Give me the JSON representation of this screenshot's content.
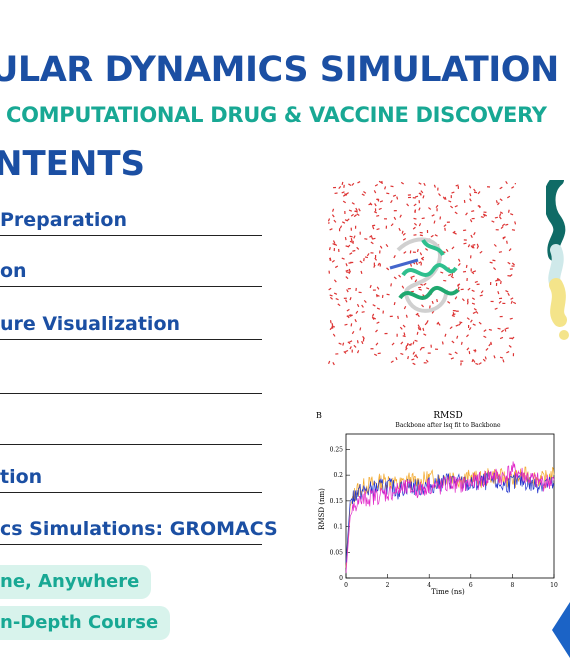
{
  "header": {
    "title": "ULAR DYNAMICS SIMULATION C",
    "subtitle": "COMPUTATIONAL DRUG & VACCINE DISCOVERY",
    "contents_heading": "NTENTS"
  },
  "toc": {
    "items": [
      "Preparation",
      "on",
      "ure Visualization",
      "",
      "",
      "tion",
      "cs Simulations: GROMACS"
    ]
  },
  "pills": {
    "first": "ne, Anywhere",
    "second": "n-Depth Course"
  },
  "rmsd_plot": {
    "panel_label": "B",
    "title": "RMSD",
    "subtitle": "Backbone after lsq fit to Backbone",
    "ylabel": "RMSD (nm)",
    "xlabel": "Time (ns)",
    "yticks": [
      "0",
      "0.05",
      "0.1",
      "0.15",
      "0.2",
      "0.25"
    ],
    "xticks": [
      "0",
      "2",
      "4",
      "6",
      "8",
      "10"
    ]
  },
  "chart_data": {
    "type": "line",
    "title": "RMSD",
    "subtitle": "Backbone after lsq fit to Backbone",
    "xlabel": "Time (ns)",
    "ylabel": "RMSD (nm)",
    "xlim": [
      0,
      10
    ],
    "ylim": [
      0,
      0.28
    ],
    "grid": false,
    "series": [
      {
        "color": "#f2a522",
        "x": [
          0,
          0.2,
          0.5,
          1,
          1.5,
          2,
          2.5,
          3,
          3.5,
          4,
          4.5,
          5,
          5.5,
          6,
          6.5,
          7,
          7.5,
          8,
          8.5,
          9,
          9.5,
          10
        ],
        "y": [
          0.02,
          0.14,
          0.17,
          0.18,
          0.185,
          0.19,
          0.18,
          0.19,
          0.185,
          0.195,
          0.19,
          0.2,
          0.19,
          0.195,
          0.19,
          0.2,
          0.195,
          0.19,
          0.2,
          0.195,
          0.19,
          0.2
        ]
      },
      {
        "color": "#2233cc",
        "x": [
          0,
          0.2,
          0.5,
          1,
          1.5,
          2,
          2.5,
          3,
          3.5,
          4,
          4.5,
          5,
          5.5,
          6,
          6.5,
          7,
          7.5,
          8,
          8.5,
          9,
          9.5,
          10
        ],
        "y": [
          0.03,
          0.15,
          0.165,
          0.17,
          0.175,
          0.18,
          0.17,
          0.18,
          0.175,
          0.18,
          0.185,
          0.19,
          0.185,
          0.18,
          0.185,
          0.19,
          0.18,
          0.185,
          0.19,
          0.18,
          0.185,
          0.18
        ]
      },
      {
        "color": "#e024c8",
        "x": [
          0,
          0.2,
          0.5,
          1,
          1.5,
          2,
          2.5,
          3,
          3.5,
          4,
          4.5,
          5,
          5.5,
          6,
          6.5,
          7,
          7.5,
          8,
          8.5,
          9,
          9.5,
          10
        ],
        "y": [
          0.01,
          0.12,
          0.145,
          0.155,
          0.16,
          0.165,
          0.17,
          0.175,
          0.17,
          0.18,
          0.175,
          0.185,
          0.18,
          0.185,
          0.19,
          0.2,
          0.195,
          0.21,
          0.2,
          0.19,
          0.185,
          0.19
        ]
      }
    ]
  },
  "colors": {
    "primary": "#1b4fa3",
    "accent": "#18a894",
    "pill_bg": "#d8f3ec"
  }
}
